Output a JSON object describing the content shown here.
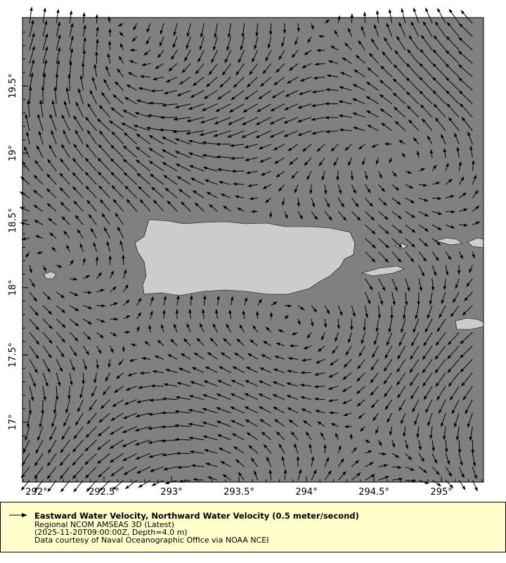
{
  "map": {
    "background_color": "#808080",
    "land_color": "#cccccc",
    "vector_color": "#000000",
    "lon_range": [
      291.896,
      295.312
    ],
    "lat_range": [
      16.555,
      20.008
    ],
    "x_ticks": [
      {
        "value": 292,
        "label": "292°"
      },
      {
        "value": 292.5,
        "label": "292.5°"
      },
      {
        "value": 293,
        "label": "293°"
      },
      {
        "value": 293.5,
        "label": "293.5°"
      },
      {
        "value": 294,
        "label": "294°"
      },
      {
        "value": 294.5,
        "label": "294.5°"
      },
      {
        "value": 295,
        "label": "295°"
      }
    ],
    "y_ticks": [
      {
        "value": 17,
        "label": "17°"
      },
      {
        "value": 17.5,
        "label": "17.5°"
      },
      {
        "value": 18,
        "label": "18°"
      },
      {
        "value": 18.5,
        "label": "18.5°"
      },
      {
        "value": 19,
        "label": "19°"
      },
      {
        "value": 19.5,
        "label": "19.5°"
      }
    ]
  },
  "legend": {
    "background_color": "#ffffcc",
    "icon": "arrow-right-icon",
    "title": "Eastward Water Velocity, Northward Water Velocity (0.5 meter/second)",
    "dataset": "Regional NCOM AMSEAS 3D (Latest)",
    "time_depth": "(2025-11-20T09:00:00Z, Depth=4.0 m)",
    "credit": "Data courtesy of Naval Oceanographic Office via NOAA NCEI"
  }
}
